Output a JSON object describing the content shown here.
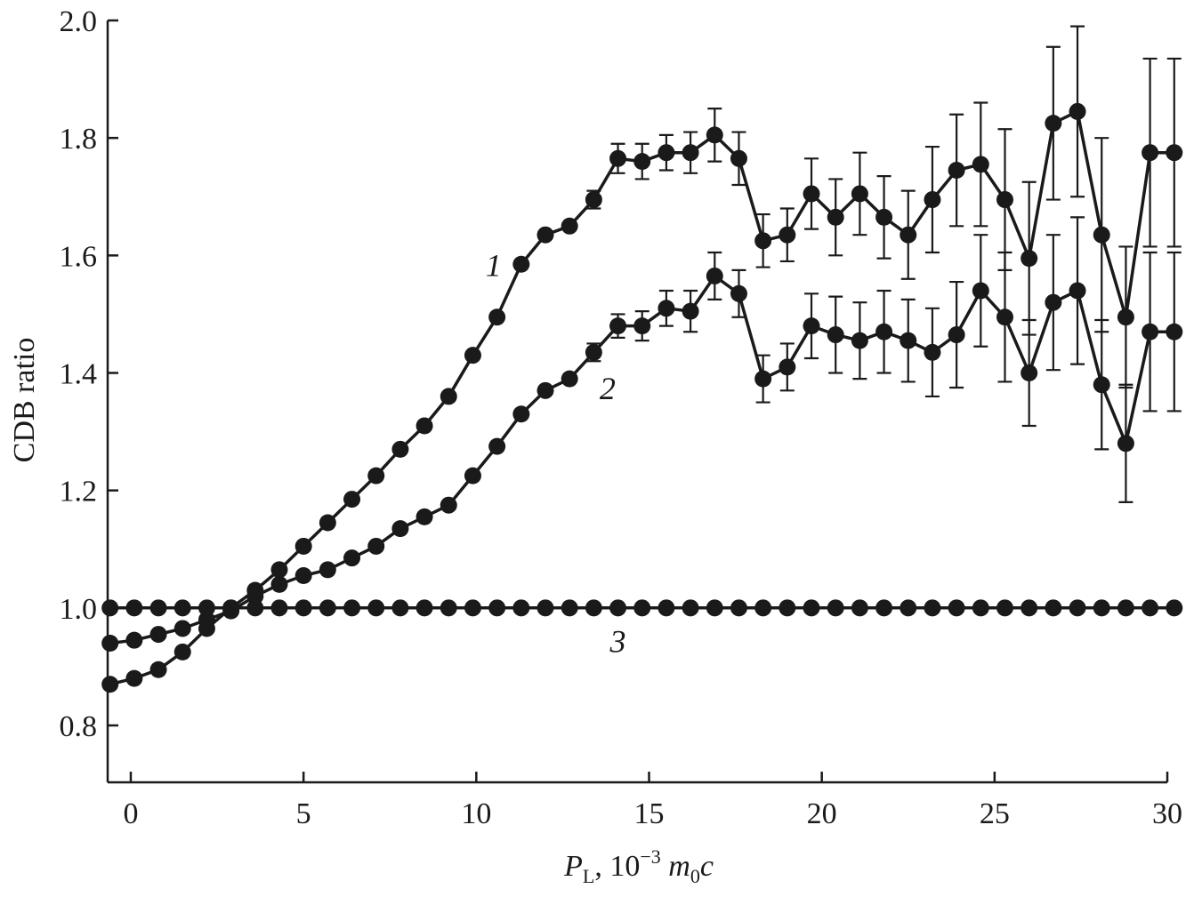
{
  "chart_data": {
    "type": "line",
    "xlabel": {
      "italic": "P",
      "sub": "L",
      "rest": ", 10",
      "sup": "−3",
      "tail_italic": "m",
      "tail_sub": "0",
      "tail_italic2": "c"
    },
    "ylabel": "CDB ratio",
    "xlim": [
      -0.6,
      30.2
    ],
    "ylim": [
      0.7,
      2.0
    ],
    "xticks": [
      0,
      5,
      10,
      15,
      20,
      25,
      30
    ],
    "yticks": [
      0.8,
      1.0,
      1.2,
      1.4,
      1.6,
      1.8,
      2.0
    ],
    "ytick_labels": [
      "0.8",
      "1.0",
      "1.2",
      "1.4",
      "1.6",
      "1.8",
      "2.0"
    ],
    "xtick_labels": [
      "0",
      "5",
      "10",
      "15",
      "20",
      "25",
      "30"
    ],
    "grid": false,
    "legend": "none (curves labeled inline)",
    "series": [
      {
        "label": "1",
        "label_pos": [
          10.5,
          1.565
        ],
        "x": [
          -0.6,
          0.1,
          0.8,
          1.5,
          2.2,
          2.9,
          3.6,
          4.3,
          5.0,
          5.7,
          6.4,
          7.1,
          7.8,
          8.5,
          9.2,
          9.9,
          10.6,
          11.3,
          12.0,
          12.7,
          13.4,
          14.1,
          14.8,
          15.5,
          16.2,
          16.9,
          17.6,
          18.3,
          19.0,
          19.7,
          20.4,
          21.1,
          21.8,
          22.5,
          23.2,
          23.9,
          24.6,
          25.3,
          26.0,
          26.7,
          27.4,
          28.1,
          28.8,
          29.5,
          30.2
        ],
        "y": [
          0.87,
          0.88,
          0.895,
          0.925,
          0.965,
          1.0,
          1.03,
          1.065,
          1.105,
          1.145,
          1.185,
          1.225,
          1.27,
          1.31,
          1.36,
          1.43,
          1.495,
          1.585,
          1.635,
          1.65,
          1.695,
          1.765,
          1.76,
          1.775,
          1.775,
          1.805,
          1.765,
          1.625,
          1.635,
          1.705,
          1.665,
          1.705,
          1.665,
          1.635,
          1.695,
          1.745,
          1.755,
          1.695,
          1.595,
          1.825,
          1.845,
          1.635,
          1.495,
          1.775,
          1.775
        ],
        "err": [
          0,
          0,
          0,
          0,
          0,
          0,
          0,
          0,
          0,
          0,
          0,
          0,
          0,
          0,
          0,
          0,
          0,
          0,
          0,
          0,
          0.015,
          0.025,
          0.03,
          0.03,
          0.035,
          0.045,
          0.045,
          0.045,
          0.045,
          0.06,
          0.065,
          0.07,
          0.07,
          0.075,
          0.09,
          0.095,
          0.105,
          0.12,
          0.13,
          0.13,
          0.145,
          0.165,
          0.12,
          0.16,
          0.16
        ]
      },
      {
        "label": "2",
        "label_pos": [
          13.8,
          1.355
        ],
        "x": [
          -0.6,
          0.1,
          0.8,
          1.5,
          2.2,
          2.9,
          3.6,
          4.3,
          5.0,
          5.7,
          6.4,
          7.1,
          7.8,
          8.5,
          9.2,
          9.9,
          10.6,
          11.3,
          12.0,
          12.7,
          13.4,
          14.1,
          14.8,
          15.5,
          16.2,
          16.9,
          17.6,
          18.3,
          19.0,
          19.7,
          20.4,
          21.1,
          21.8,
          22.5,
          23.2,
          23.9,
          24.6,
          25.3,
          26.0,
          26.7,
          27.4,
          28.1,
          28.8,
          29.5,
          30.2
        ],
        "y": [
          0.94,
          0.945,
          0.955,
          0.965,
          0.98,
          0.995,
          1.02,
          1.04,
          1.055,
          1.065,
          1.085,
          1.105,
          1.135,
          1.155,
          1.175,
          1.225,
          1.275,
          1.33,
          1.37,
          1.39,
          1.435,
          1.48,
          1.48,
          1.51,
          1.505,
          1.565,
          1.535,
          1.39,
          1.41,
          1.48,
          1.465,
          1.455,
          1.47,
          1.455,
          1.435,
          1.465,
          1.54,
          1.495,
          1.4,
          1.52,
          1.54,
          1.38,
          1.28,
          1.47,
          1.47
        ],
        "err": [
          0,
          0,
          0,
          0,
          0,
          0,
          0,
          0,
          0,
          0,
          0,
          0,
          0,
          0,
          0,
          0,
          0,
          0,
          0,
          0,
          0.015,
          0.02,
          0.025,
          0.03,
          0.035,
          0.04,
          0.04,
          0.04,
          0.04,
          0.055,
          0.065,
          0.065,
          0.07,
          0.07,
          0.075,
          0.09,
          0.095,
          0.11,
          0.09,
          0.115,
          0.125,
          0.11,
          0.1,
          0.135,
          0.135
        ]
      },
      {
        "label": "3",
        "label_pos": [
          14.1,
          0.925
        ],
        "x": [
          -0.6,
          0.1,
          0.8,
          1.5,
          2.2,
          2.9,
          3.6,
          4.3,
          5.0,
          5.7,
          6.4,
          7.1,
          7.8,
          8.5,
          9.2,
          9.9,
          10.6,
          11.3,
          12.0,
          12.7,
          13.4,
          14.1,
          14.8,
          15.5,
          16.2,
          16.9,
          17.6,
          18.3,
          19.0,
          19.7,
          20.4,
          21.1,
          21.8,
          22.5,
          23.2,
          23.9,
          24.6,
          25.3,
          26.0,
          26.7,
          27.4,
          28.1,
          28.8,
          29.5,
          30.2
        ],
        "y": [
          1.0,
          1.0,
          1.0,
          1.0,
          1.0,
          1.0,
          1.0,
          1.0,
          1.0,
          1.0,
          1.0,
          1.0,
          1.0,
          1.0,
          1.0,
          1.0,
          1.0,
          1.0,
          1.0,
          1.0,
          1.0,
          1.0,
          1.0,
          1.0,
          1.0,
          1.0,
          1.0,
          1.0,
          1.0,
          1.0,
          1.0,
          1.0,
          1.0,
          1.0,
          1.0,
          1.0,
          1.0,
          1.0,
          1.0,
          1.0,
          1.0,
          1.0,
          1.0,
          1.0,
          1.0
        ],
        "err": [
          0,
          0,
          0,
          0,
          0,
          0,
          0,
          0,
          0,
          0,
          0,
          0,
          0,
          0,
          0,
          0,
          0,
          0,
          0,
          0,
          0,
          0,
          0,
          0,
          0,
          0,
          0,
          0,
          0,
          0,
          0,
          0,
          0,
          0,
          0,
          0,
          0,
          0,
          0,
          0,
          0,
          0,
          0,
          0,
          0
        ]
      }
    ]
  }
}
